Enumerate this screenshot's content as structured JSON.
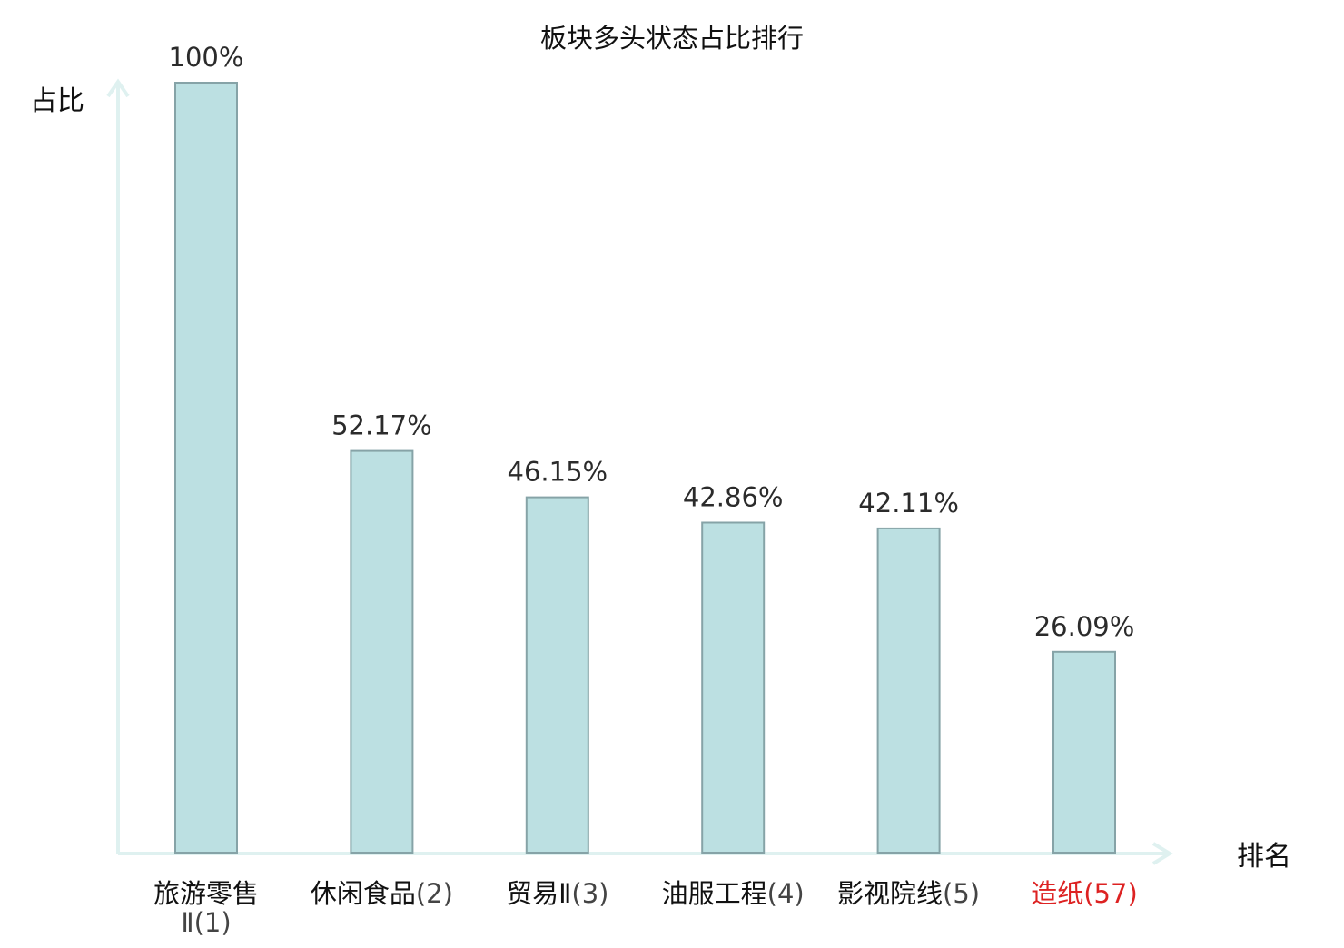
{
  "chart_data": {
    "type": "bar",
    "title": "板块多头状态占比排行",
    "ylabel": "占比",
    "xlabel": "排名",
    "ylim": [
      0,
      100
    ],
    "grid": false,
    "legend": "none",
    "categories": [
      {
        "name": "旅游零售Ⅱ",
        "rank": "(1)",
        "highlight": false
      },
      {
        "name": "休闲食品",
        "rank": "(2)",
        "highlight": false
      },
      {
        "name": "贸易Ⅱ",
        "rank": "(3)",
        "highlight": false
      },
      {
        "name": "油服工程",
        "rank": "(4)",
        "highlight": false
      },
      {
        "name": "影视院线",
        "rank": "(5)",
        "highlight": false
      },
      {
        "name": "造纸",
        "rank": "(57)",
        "highlight": true
      }
    ],
    "values": [
      100,
      52.17,
      46.15,
      42.86,
      42.11,
      26.09
    ],
    "value_labels": [
      "100%",
      "52.17%",
      "46.15%",
      "42.86%",
      "42.11%",
      "26.09%"
    ],
    "colors": {
      "bar_fill": "#bce0e2",
      "bar_stroke": "#86a3a7",
      "axis": "#dff1f0",
      "text": "#2b2b2b",
      "label": "#111111",
      "rank": "#444444",
      "highlight": "#dd2222"
    }
  }
}
